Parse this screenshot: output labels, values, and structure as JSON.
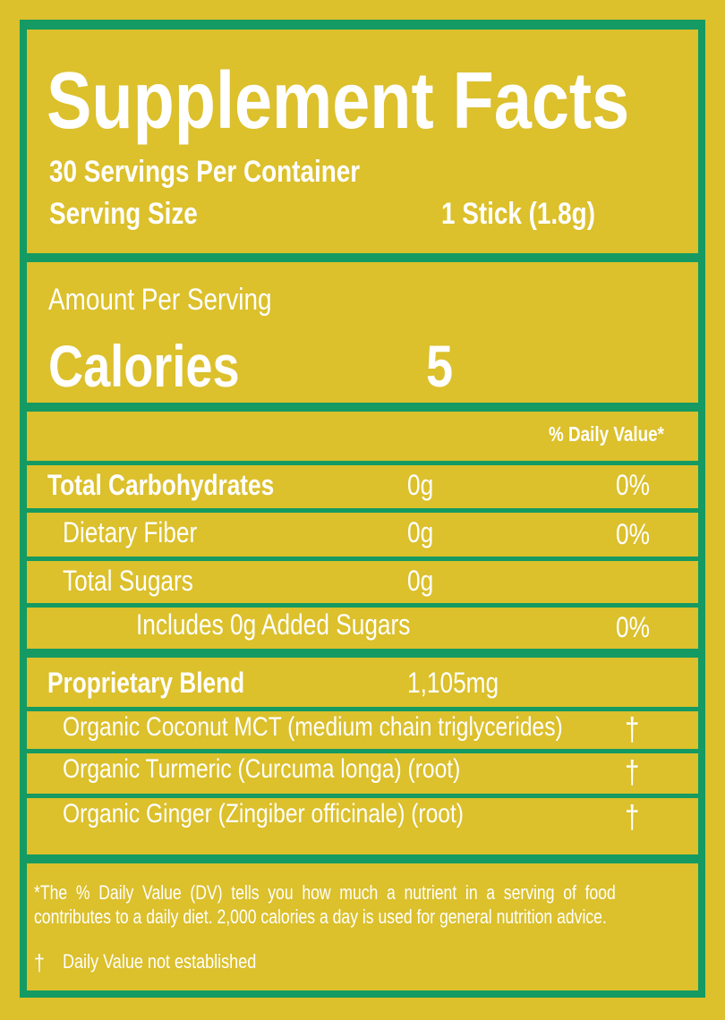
{
  "colors": {
    "background": "#dcc02c",
    "border": "#149a62",
    "text": "#ffffff"
  },
  "header": {
    "title": "Supplement Facts",
    "servings": "30 Servings Per Container",
    "serving_size_label": "Serving Size",
    "serving_size_value": "1 Stick (1.8g)"
  },
  "calories": {
    "amount_label": "Amount Per Serving",
    "label": "Calories",
    "value": "5"
  },
  "dv_header": "% Daily Value*",
  "nutrients": [
    {
      "name": "Total Carbohydrates",
      "amount": "0g",
      "dv": "0%"
    },
    {
      "name": "Dietary Fiber",
      "amount": "0g",
      "dv": "0%"
    },
    {
      "name": "Total Sugars",
      "amount": "0g",
      "dv": ""
    },
    {
      "name": "Includes 0g Added Sugars",
      "amount": "",
      "dv": "0%"
    }
  ],
  "blend": {
    "name": "Proprietary Blend",
    "amount": "1,105mg",
    "ingredients": [
      {
        "name": "Organic Coconut MCT (medium chain triglycerides)",
        "dv": "†"
      },
      {
        "name": "Organic Turmeric (Curcuma longa) (root)",
        "dv": "†"
      },
      {
        "name": "Organic Ginger (Zingiber officinale) (root)",
        "dv": "†"
      }
    ]
  },
  "footnote": {
    "line1": "*The % Daily Value (DV) tells you how much a nutrient in a serving of food",
    "line2": "contributes to a daily diet. 2,000 calories a day is used for general nutrition advice.",
    "dagger": "†",
    "dagger_text": "Daily Value not established"
  }
}
